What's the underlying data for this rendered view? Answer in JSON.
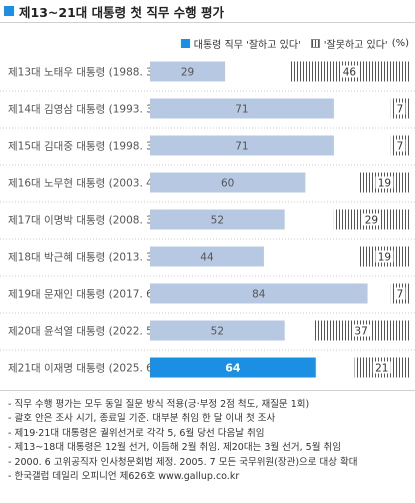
{
  "title": "제13~21대 대통령 첫 직무 수행 평가",
  "colors": {
    "accent": "#1a8fe3",
    "positive": "#b7c9e2",
    "negative_stripe": "#555555",
    "label": "#555555",
    "highlight_text": "#ffffff"
  },
  "legend": {
    "positive": "대통령 직무 '잘하고 있다'",
    "negative": "'잘못하고 있다'",
    "unit": "(%)",
    "placement": "top-right"
  },
  "chart_data": {
    "type": "bar",
    "orientation": "horizontal",
    "stacked": "diverging-from-both-ends",
    "categories": [
      "제13대 노태우 대통령 (1988. 3.19)",
      "제14대 김영삼 대통령 (1993. 3.21)",
      "제15대 김대중 대통령 (1998. 3.xx)",
      "제16대 노무현 대통령 (2003. 4.29)",
      "제17대 이명박 대통령 (2008. 3. 2)",
      "제18대 박근혜 대통령 (2013. 3.21)",
      "제19대 문재인 대통령 (2017. 6. 1)",
      "제20대 윤석열 대통령 (2022. 5.12)",
      "제21대 이재명 대통령 (2025. 6.26)"
    ],
    "series": [
      {
        "name": "대통령 직무 '잘하고 있다'",
        "values": [
          29,
          71,
          71,
          60,
          52,
          44,
          84,
          52,
          64
        ],
        "labels": [
          "29",
          "71",
          "71",
          "60",
          "52",
          "44",
          "84",
          "52",
          "64"
        ]
      },
      {
        "name": "'잘못하고 있다'",
        "values": [
          46,
          7,
          7,
          19,
          29,
          19,
          7,
          37,
          21
        ],
        "labels": [
          "46",
          "7",
          "7",
          "19",
          "29",
          "19",
          "7",
          "37",
          "21"
        ]
      }
    ],
    "xlim": [
      0,
      100
    ],
    "highlight_index": 8,
    "grid": false
  },
  "notes": [
    "- 직무 수행 평가는 모두 동일 질문 방식 적용(긍·부정 2점 척도, 재질문 1회)",
    "- 괄호 안은 조사 시기, 종료일 기준. 대부분 취임 한 달 이내 첫 조사",
    "- 제19·21대 대통령은 궐위선거로 각각 5, 6월 당선 다음날 취임",
    "- 제13~18대 대통령은 12월 선거, 이듬해 2월 취임. 제20대는 3월 선거, 5월 취임",
    "- 2000. 6 고위공직자 인사청문회법 제정. 2005. 7 모든 국무위원(장관)으로 대상 확대",
    "- 한국갤럽 데일리 오피니언 제626호 www.gallup.co.kr"
  ]
}
